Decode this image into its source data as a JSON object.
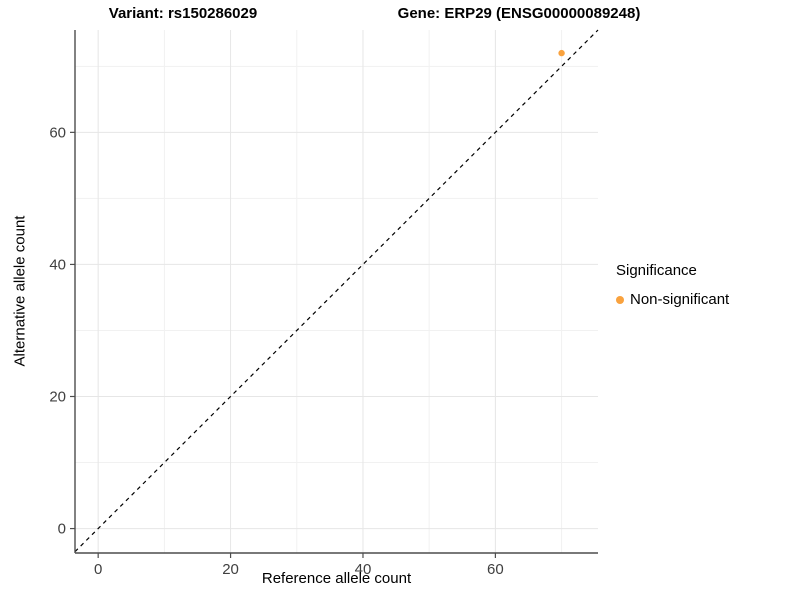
{
  "colors": {
    "point": "#F9A23E",
    "grid_major": "#E6E6E6",
    "grid_minor": "#F1F1F1",
    "axis_line": "#4D4D4D",
    "tick_text": "#404040",
    "identity_line": "#000000",
    "background": "#FFFFFF"
  },
  "chart_data": {
    "type": "scatter",
    "title_left": "Variant: rs150286029",
    "title_right": "Gene: ERP29 (ENSG00000089248)",
    "xlabel": "Reference allele count",
    "ylabel": "Alternative allele count",
    "xlim": [
      -3.5,
      75.5
    ],
    "ylim": [
      -3.7,
      75.5
    ],
    "x_ticks": [
      0,
      20,
      40,
      60
    ],
    "y_ticks": [
      0,
      20,
      40,
      60
    ],
    "x_minor_ticks": [
      10,
      30,
      50,
      70
    ],
    "y_minor_ticks": [
      10,
      30,
      50,
      70
    ],
    "grid": true,
    "identity_line": {
      "equation": "y = x",
      "style": "dashed",
      "color": "#000000"
    },
    "series": [
      {
        "name": "Non-significant",
        "color": "#F9A23E",
        "points": [
          {
            "x": 70,
            "y": 72
          }
        ]
      }
    ],
    "legend": {
      "title": "Significance",
      "position": "right",
      "items": [
        {
          "label": "Non-significant",
          "color": "#F9A23E"
        }
      ]
    }
  }
}
